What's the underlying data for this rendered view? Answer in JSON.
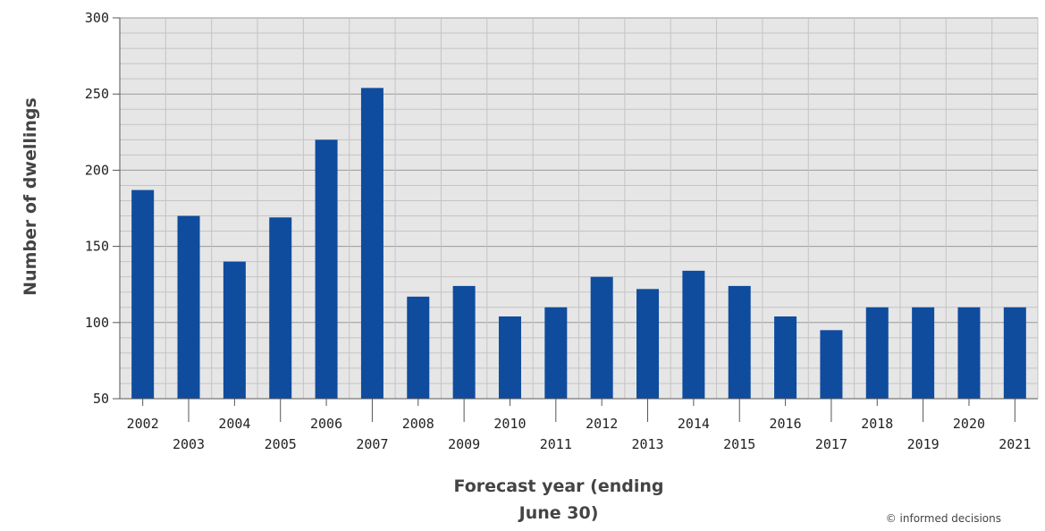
{
  "chart_data": {
    "type": "bar",
    "categories": [
      "2002",
      "2003",
      "2004",
      "2005",
      "2006",
      "2007",
      "2008",
      "2009",
      "2010",
      "2011",
      "2012",
      "2013",
      "2014",
      "2015",
      "2016",
      "2017",
      "2018",
      "2019",
      "2020",
      "2021"
    ],
    "values": [
      187,
      170,
      140,
      169,
      220,
      254,
      117,
      124,
      104,
      110,
      130,
      122,
      134,
      124,
      104,
      95,
      110,
      110,
      110,
      110
    ],
    "title": "",
    "xlabel_lines": [
      "Forecast year (ending",
      "June 30)"
    ],
    "ylabel": "Number of dwellings",
    "ylim": [
      50,
      300
    ],
    "y_ticks": [
      50,
      100,
      150,
      200,
      250,
      300
    ],
    "grid": true,
    "colors": {
      "bar": "#0f4c9e",
      "plot_bg": "#e6e6e6",
      "grid_major": "#9a9a9a",
      "grid_minor": "#c4c4c4",
      "axis": "#555555"
    }
  },
  "credit": "© informed decisions"
}
